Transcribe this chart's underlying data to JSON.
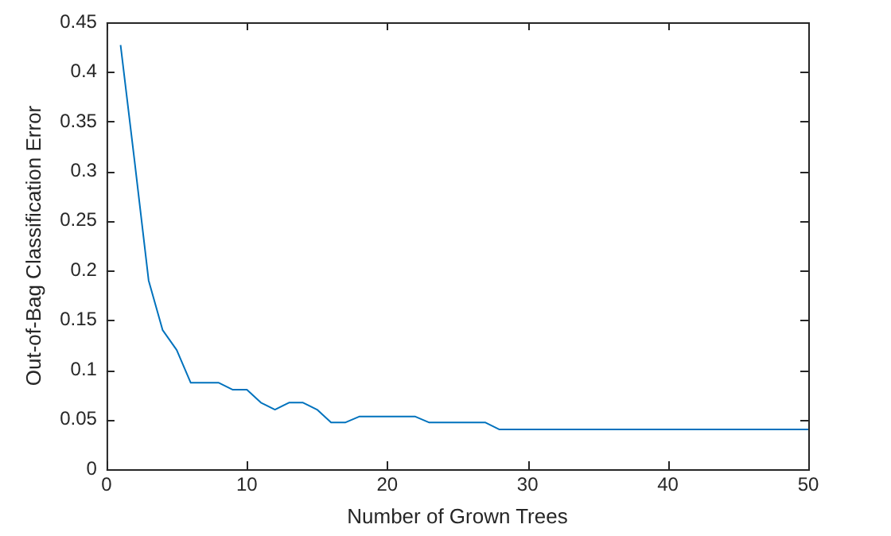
{
  "chart_data": {
    "type": "line",
    "xlabel": "Number of Grown Trees",
    "ylabel": "Out-of-Bag Classification Error",
    "x": [
      1,
      2,
      3,
      4,
      5,
      6,
      7,
      8,
      9,
      10,
      11,
      12,
      13,
      14,
      15,
      16,
      17,
      18,
      19,
      20,
      21,
      22,
      23,
      24,
      25,
      26,
      27,
      28,
      29,
      30,
      31,
      32,
      33,
      34,
      35,
      36,
      37,
      38,
      39,
      40,
      41,
      42,
      43,
      44,
      45,
      46,
      47,
      48,
      49,
      50
    ],
    "series": [
      {
        "color": "#0072bd",
        "values": [
          0.427,
          0.31,
          0.19,
          0.14,
          0.12,
          0.087,
          0.087,
          0.087,
          0.08,
          0.08,
          0.067,
          0.06,
          0.067,
          0.067,
          0.06,
          0.047,
          0.047,
          0.053,
          0.053,
          0.053,
          0.053,
          0.053,
          0.047,
          0.047,
          0.047,
          0.047,
          0.047,
          0.04,
          0.04,
          0.04,
          0.04,
          0.04,
          0.04,
          0.04,
          0.04,
          0.04,
          0.04,
          0.04,
          0.04,
          0.04,
          0.04,
          0.04,
          0.04,
          0.04,
          0.04,
          0.04,
          0.04,
          0.04,
          0.04,
          0.04
        ]
      }
    ],
    "xlim": [
      0,
      50
    ],
    "xticks": [
      0,
      10,
      20,
      30,
      40,
      50
    ],
    "ylim": [
      0,
      0.45
    ],
    "yticks": [
      0,
      0.05,
      0.1,
      0.15,
      0.2,
      0.25,
      0.3,
      0.35,
      0.4,
      0.45
    ],
    "grid": false,
    "legend": false,
    "marker": "none",
    "line_style": "solid"
  }
}
